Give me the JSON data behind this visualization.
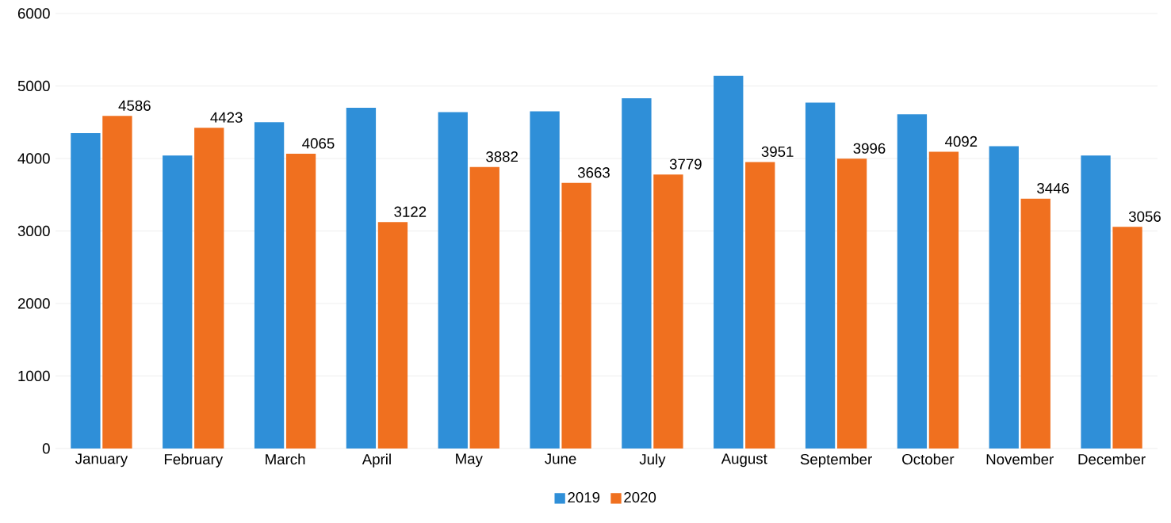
{
  "chart_data": {
    "type": "bar",
    "categories": [
      "January",
      "February",
      "March",
      "April",
      "May",
      "June",
      "July",
      "August",
      "September",
      "October",
      "November",
      "December"
    ],
    "series": [
      {
        "name": "2019",
        "color": "#2f8fd8",
        "values": [
          4350,
          4040,
          4500,
          4700,
          4640,
          4650,
          4830,
          5140,
          4770,
          4610,
          4170,
          4040
        ]
      },
      {
        "name": "2020",
        "color": "#f0701f",
        "values": [
          4586,
          4423,
          4065,
          3122,
          3882,
          3663,
          3779,
          3951,
          3996,
          4092,
          3446,
          3056
        ],
        "value_labels": [
          "4586",
          "4423",
          "4065",
          "3122",
          "3882",
          "3663",
          "3779",
          "3951",
          "3996",
          "4092",
          "3446",
          "3056"
        ]
      }
    ],
    "ylim": [
      0,
      6000
    ],
    "yticks": [
      0,
      1000,
      2000,
      3000,
      4000,
      5000,
      6000
    ],
    "grid": "y",
    "legend": "bottom"
  }
}
